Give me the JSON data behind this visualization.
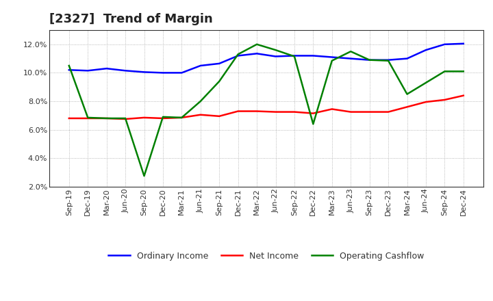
{
  "title": "[2327]  Trend of Margin",
  "x_labels": [
    "Sep-19",
    "Dec-19",
    "Mar-20",
    "Jun-20",
    "Sep-20",
    "Dec-20",
    "Mar-21",
    "Jun-21",
    "Sep-21",
    "Dec-21",
    "Mar-22",
    "Jun-22",
    "Sep-22",
    "Dec-22",
    "Mar-23",
    "Jun-23",
    "Sep-23",
    "Dec-23",
    "Mar-24",
    "Jun-24",
    "Sep-24",
    "Dec-24"
  ],
  "ordinary_income": [
    10.2,
    10.15,
    10.3,
    10.15,
    10.05,
    10.0,
    10.0,
    10.5,
    10.65,
    11.2,
    11.35,
    11.15,
    11.2,
    11.2,
    11.1,
    11.0,
    10.9,
    10.9,
    11.0,
    11.6,
    12.0,
    12.05
  ],
  "net_income": [
    6.8,
    6.8,
    6.8,
    6.75,
    6.85,
    6.8,
    6.85,
    7.05,
    6.95,
    7.3,
    7.3,
    7.25,
    7.25,
    7.15,
    7.45,
    7.25,
    7.25,
    7.25,
    7.6,
    7.95,
    8.1,
    8.4
  ],
  "operating_cashflow": [
    10.5,
    6.85,
    6.8,
    6.8,
    2.75,
    6.9,
    6.85,
    8.0,
    9.4,
    11.3,
    12.0,
    11.6,
    11.15,
    6.4,
    10.85,
    11.5,
    10.9,
    10.85,
    8.5,
    9.3,
    10.1,
    10.1
  ],
  "ylim": [
    2.0,
    13.0
  ],
  "yticks": [
    2.0,
    4.0,
    6.0,
    8.0,
    10.0,
    12.0
  ],
  "ordinary_color": "#0000FF",
  "net_income_color": "#FF0000",
  "cashflow_color": "#008000",
  "bg_color": "#FFFFFF",
  "plot_bg_color": "#FFFFFF",
  "grid_color": "#999999",
  "title_fontsize": 13,
  "tick_fontsize": 8,
  "legend_labels": [
    "Ordinary Income",
    "Net Income",
    "Operating Cashflow"
  ]
}
